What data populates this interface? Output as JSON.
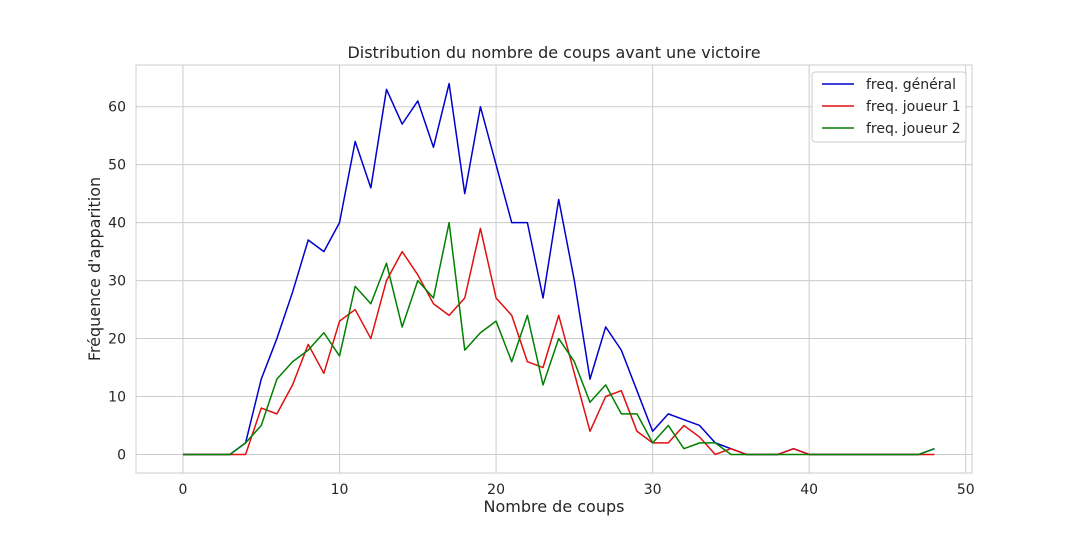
{
  "chart_data": {
    "type": "line",
    "title": "Distribution du nombre de coups avant une victoire",
    "xlabel": "Nombre de coups",
    "ylabel": "Fréquence d'apparition",
    "xlim": [
      -3,
      50.4
    ],
    "ylim": [
      -3.2,
      67.2
    ],
    "xticks": [
      0,
      10,
      20,
      30,
      40,
      50
    ],
    "yticks": [
      0,
      10,
      20,
      30,
      40,
      50,
      60
    ],
    "grid": true,
    "legend_position": "top-right",
    "x": [
      0,
      1,
      2,
      3,
      4,
      5,
      6,
      7,
      8,
      9,
      10,
      11,
      12,
      13,
      14,
      15,
      16,
      17,
      18,
      19,
      20,
      21,
      22,
      23,
      24,
      25,
      26,
      27,
      28,
      29,
      30,
      31,
      32,
      33,
      34,
      35,
      36,
      37,
      38,
      39,
      40,
      41,
      42,
      43,
      44,
      45,
      46,
      47,
      48
    ],
    "series": [
      {
        "name": "freq. général",
        "color": "#0000cc",
        "values": [
          0,
          0,
          0,
          0,
          2,
          13,
          20,
          28,
          37,
          35,
          40,
          54,
          46,
          63,
          57,
          61,
          53,
          64,
          45,
          60,
          50,
          40,
          40,
          27,
          44,
          30,
          13,
          22,
          18,
          11,
          4,
          7,
          6,
          5,
          2,
          1,
          0,
          0,
          0,
          1,
          0,
          0,
          0,
          0,
          0,
          0,
          0,
          0,
          1
        ]
      },
      {
        "name": "freq. joueur 1",
        "color": "#e01010",
        "values": [
          0,
          0,
          0,
          0,
          0,
          8,
          7,
          12,
          19,
          14,
          23,
          25,
          20,
          30,
          35,
          31,
          26,
          24,
          27,
          39,
          27,
          24,
          16,
          15,
          24,
          14,
          4,
          10,
          11,
          4,
          2,
          2,
          5,
          3,
          0,
          1,
          0,
          0,
          0,
          1,
          0,
          0,
          0,
          0,
          0,
          0,
          0,
          0,
          0
        ]
      },
      {
        "name": "freq. joueur 2",
        "color": "#008000",
        "values": [
          0,
          0,
          0,
          0,
          2,
          5,
          13,
          16,
          18,
          21,
          17,
          29,
          26,
          33,
          22,
          30,
          27,
          40,
          18,
          21,
          23,
          16,
          24,
          12,
          20,
          16,
          9,
          12,
          7,
          7,
          2,
          5,
          1,
          2,
          2,
          0,
          0,
          0,
          0,
          0,
          0,
          0,
          0,
          0,
          0,
          0,
          0,
          0,
          1
        ]
      }
    ]
  }
}
